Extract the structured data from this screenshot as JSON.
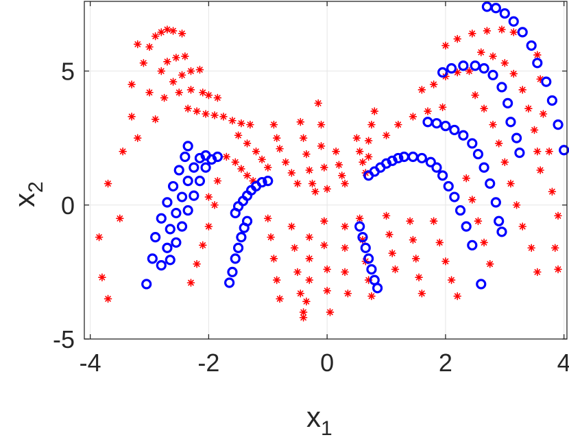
{
  "chart_data": {
    "type": "scatter",
    "xlabel": "x",
    "xlabel_sub": "1",
    "ylabel": "x",
    "ylabel_sub": "2",
    "xlim": [
      -4.1,
      4.05
    ],
    "ylim": [
      -5,
      7.6
    ],
    "xticks": [
      -4,
      -2,
      0,
      2,
      4
    ],
    "yticks": [
      -5,
      0,
      5
    ],
    "xtick_labels": [
      "-4",
      "-2",
      "0",
      "2",
      "4"
    ],
    "ytick_labels": [
      "-5",
      "0",
      "5"
    ],
    "grid": true,
    "colors": {
      "star": "#ff0000",
      "circle": "#0000ff",
      "axis": "#262626",
      "grid": "#e6e6e6"
    },
    "series": [
      {
        "marker": "star",
        "color": "#ff0000",
        "values": [
          [
            -3.8,
            -2.7
          ],
          [
            -3.7,
            -3.5
          ],
          [
            -3.85,
            -1.2
          ],
          [
            -3.7,
            0.8
          ],
          [
            -3.5,
            -0.5
          ],
          [
            -3.45,
            2.0
          ],
          [
            -3.3,
            3.3
          ],
          [
            -3.3,
            4.5
          ],
          [
            -3.2,
            6.0
          ],
          [
            -3.1,
            5.3
          ],
          [
            -3.0,
            5.9
          ],
          [
            -2.9,
            6.3
          ],
          [
            -2.8,
            6.45
          ],
          [
            -2.7,
            6.55
          ],
          [
            -2.6,
            6.5
          ],
          [
            -2.45,
            6.4
          ],
          [
            -3.0,
            4.2
          ],
          [
            -2.8,
            5.0
          ],
          [
            -2.7,
            5.35
          ],
          [
            -2.55,
            5.5
          ],
          [
            -2.4,
            5.55
          ],
          [
            -3.2,
            2.5
          ],
          [
            -2.9,
            3.2
          ],
          [
            -2.75,
            4.0
          ],
          [
            -2.6,
            4.6
          ],
          [
            -2.45,
            4.85
          ],
          [
            -2.3,
            5.0
          ],
          [
            -2.15,
            5.05
          ],
          [
            -2.5,
            4.2
          ],
          [
            -2.3,
            4.3
          ],
          [
            -2.1,
            4.2
          ],
          [
            -2.0,
            4.1
          ],
          [
            -1.85,
            4.0
          ],
          [
            -2.35,
            3.6
          ],
          [
            -2.2,
            3.5
          ],
          [
            -2.05,
            3.4
          ],
          [
            -1.9,
            3.35
          ],
          [
            -1.75,
            3.3
          ],
          [
            -1.6,
            3.15
          ],
          [
            -1.45,
            3.05
          ],
          [
            -1.3,
            3.0
          ],
          [
            -1.5,
            2.6
          ],
          [
            -1.35,
            2.3
          ],
          [
            -1.2,
            2.0
          ],
          [
            -1.1,
            1.7
          ],
          [
            -1.0,
            1.4
          ],
          [
            -1.55,
            1.6
          ],
          [
            -1.45,
            1.35
          ],
          [
            -1.35,
            1.1
          ],
          [
            -1.25,
            0.9
          ],
          [
            -0.9,
            3.0
          ],
          [
            -0.85,
            2.5
          ],
          [
            -0.8,
            2.1
          ],
          [
            -0.7,
            1.6
          ],
          [
            -0.6,
            1.2
          ],
          [
            -0.5,
            0.8
          ],
          [
            -0.45,
            3.1
          ],
          [
            -0.4,
            2.5
          ],
          [
            -0.35,
            1.9
          ],
          [
            -0.3,
            1.3
          ],
          [
            -0.25,
            0.8
          ],
          [
            -0.2,
            0.5
          ],
          [
            -0.15,
            3.8
          ],
          [
            -0.1,
            3.0
          ],
          [
            -0.1,
            2.2
          ],
          [
            -0.05,
            1.4
          ],
          [
            0.0,
            0.6
          ],
          [
            0.15,
            2.0
          ],
          [
            0.2,
            1.5
          ],
          [
            0.25,
            1.1
          ],
          [
            0.3,
            0.8
          ],
          [
            0.5,
            2.5
          ],
          [
            0.55,
            2.0
          ],
          [
            0.6,
            1.6
          ],
          [
            0.65,
            1.2
          ],
          [
            0.8,
            3.5
          ],
          [
            0.75,
            3.0
          ],
          [
            0.7,
            2.4
          ],
          [
            0.7,
            1.8
          ],
          [
            -1.0,
            -0.5
          ],
          [
            -0.95,
            -1.2
          ],
          [
            -0.9,
            -2.0
          ],
          [
            -0.85,
            -2.8
          ],
          [
            -0.8,
            -3.5
          ],
          [
            -0.6,
            -0.8
          ],
          [
            -0.55,
            -1.6
          ],
          [
            -0.5,
            -2.5
          ],
          [
            -0.45,
            -3.3
          ],
          [
            -0.4,
            -4.0
          ],
          [
            -0.3,
            -1.2
          ],
          [
            -0.3,
            -2.0
          ],
          [
            -0.3,
            -2.8
          ],
          [
            -0.35,
            -3.6
          ],
          [
            -0.4,
            -4.2
          ],
          [
            -0.05,
            -0.6
          ],
          [
            -0.05,
            -1.5
          ],
          [
            0.0,
            -2.4
          ],
          [
            0.0,
            -3.2
          ],
          [
            0.05,
            -4.0
          ],
          [
            0.3,
            -0.8
          ],
          [
            0.3,
            -1.6
          ],
          [
            0.3,
            -2.5
          ],
          [
            0.35,
            -3.3
          ],
          [
            0.55,
            -0.5
          ],
          [
            0.6,
            -1.3
          ],
          [
            0.65,
            -2.1
          ],
          [
            0.7,
            -2.8
          ],
          [
            0.75,
            -3.4
          ],
          [
            1.0,
            -0.4
          ],
          [
            1.05,
            -1.1
          ],
          [
            1.1,
            -1.8
          ],
          [
            1.15,
            -2.4
          ],
          [
            1.4,
            -0.6
          ],
          [
            1.45,
            -1.3
          ],
          [
            1.5,
            -2.0
          ],
          [
            1.55,
            -2.7
          ],
          [
            1.6,
            -3.3
          ],
          [
            1.8,
            -0.6
          ],
          [
            1.9,
            -1.4
          ],
          [
            2.0,
            -2.1
          ],
          [
            2.1,
            -2.8
          ],
          [
            2.2,
            -3.4
          ],
          [
            -1.9,
            0.0
          ],
          [
            -2.0,
            -0.8
          ],
          [
            -2.1,
            -1.5
          ],
          [
            -2.2,
            -2.2
          ],
          [
            -2.3,
            -2.9
          ],
          [
            -1.7,
            1.8
          ],
          [
            -1.85,
            0.9
          ],
          [
            -2.0,
            0.3
          ],
          [
            1.0,
            2.6
          ],
          [
            1.2,
            3.0
          ],
          [
            1.45,
            3.3
          ],
          [
            1.7,
            3.5
          ],
          [
            1.95,
            3.65
          ],
          [
            1.6,
            4.3
          ],
          [
            1.8,
            4.5
          ],
          [
            2.0,
            4.8
          ],
          [
            2.2,
            4.95
          ],
          [
            2.4,
            5.0
          ],
          [
            2.0,
            5.95
          ],
          [
            2.2,
            6.2
          ],
          [
            2.45,
            6.4
          ],
          [
            2.7,
            6.5
          ],
          [
            2.95,
            6.55
          ],
          [
            3.15,
            6.45
          ],
          [
            2.6,
            5.7
          ],
          [
            2.8,
            5.55
          ],
          [
            3.0,
            5.3
          ],
          [
            3.15,
            4.9
          ],
          [
            3.3,
            4.3
          ],
          [
            3.4,
            3.6
          ],
          [
            3.5,
            2.8
          ],
          [
            3.55,
            2.0
          ],
          [
            3.6,
            1.3
          ],
          [
            2.5,
            4.1
          ],
          [
            2.65,
            3.6
          ],
          [
            2.8,
            3.0
          ],
          [
            2.9,
            2.3
          ],
          [
            3.0,
            1.6
          ],
          [
            3.1,
            0.8
          ],
          [
            3.2,
            0.0
          ],
          [
            3.3,
            -0.8
          ],
          [
            3.45,
            -1.6
          ],
          [
            3.55,
            -2.5
          ],
          [
            2.35,
            1.0
          ],
          [
            2.45,
            0.2
          ],
          [
            2.55,
            -0.6
          ],
          [
            2.65,
            -1.4
          ],
          [
            2.75,
            -2.2
          ],
          [
            3.8,
            0.5
          ],
          [
            3.9,
            -0.4
          ],
          [
            3.85,
            -1.6
          ],
          [
            3.9,
            -2.4
          ],
          [
            3.75,
            2.0
          ],
          [
            3.65,
            3.4
          ],
          [
            3.6,
            4.7
          ],
          [
            3.55,
            5.6
          ]
        ]
      },
      {
        "marker": "circle",
        "color": "#0000ff",
        "values": [
          [
            -3.05,
            -2.95
          ],
          [
            -2.95,
            -2.0
          ],
          [
            -2.9,
            -1.2
          ],
          [
            -2.8,
            -0.5
          ],
          [
            -2.7,
            0.1
          ],
          [
            -2.6,
            0.7
          ],
          [
            -2.5,
            1.3
          ],
          [
            -2.4,
            1.8
          ],
          [
            -2.35,
            2.2
          ],
          [
            -2.8,
            -2.25
          ],
          [
            -2.7,
            -1.6
          ],
          [
            -2.65,
            -0.9
          ],
          [
            -2.55,
            -0.3
          ],
          [
            -2.45,
            0.3
          ],
          [
            -2.35,
            0.9
          ],
          [
            -2.25,
            1.4
          ],
          [
            -2.15,
            1.75
          ],
          [
            -2.05,
            1.85
          ],
          [
            -2.65,
            -2.05
          ],
          [
            -2.55,
            -1.4
          ],
          [
            -2.45,
            -0.8
          ],
          [
            -2.35,
            -0.2
          ],
          [
            -2.25,
            0.35
          ],
          [
            -2.15,
            0.9
          ],
          [
            -2.05,
            1.4
          ],
          [
            -1.95,
            1.7
          ],
          [
            -1.85,
            1.8
          ],
          [
            -1.65,
            -2.9
          ],
          [
            -1.6,
            -2.5
          ],
          [
            -1.55,
            -2.0
          ],
          [
            -1.5,
            -1.6
          ],
          [
            -1.45,
            -1.2
          ],
          [
            -1.4,
            -0.85
          ],
          [
            -1.35,
            -0.6
          ],
          [
            -1.55,
            -0.3
          ],
          [
            -1.5,
            -0.05
          ],
          [
            -1.42,
            0.15
          ],
          [
            -1.35,
            0.35
          ],
          [
            -1.28,
            0.55
          ],
          [
            -1.2,
            0.7
          ],
          [
            -1.1,
            0.85
          ],
          [
            -1.0,
            0.9
          ],
          [
            0.55,
            -0.8
          ],
          [
            0.6,
            -1.2
          ],
          [
            0.65,
            -1.6
          ],
          [
            0.7,
            -2.0
          ],
          [
            0.75,
            -2.4
          ],
          [
            0.8,
            -2.8
          ],
          [
            0.85,
            -3.1
          ],
          [
            0.7,
            1.1
          ],
          [
            0.8,
            1.25
          ],
          [
            0.9,
            1.4
          ],
          [
            1.0,
            1.55
          ],
          [
            1.1,
            1.65
          ],
          [
            1.2,
            1.75
          ],
          [
            1.3,
            1.8
          ],
          [
            1.45,
            1.8
          ],
          [
            1.6,
            1.75
          ],
          [
            1.75,
            1.6
          ],
          [
            1.85,
            1.4
          ],
          [
            1.95,
            1.1
          ],
          [
            2.05,
            0.7
          ],
          [
            2.15,
            0.3
          ],
          [
            2.25,
            -0.2
          ],
          [
            2.35,
            -0.8
          ],
          [
            2.45,
            -1.5
          ],
          [
            2.6,
            -2.95
          ],
          [
            1.7,
            3.1
          ],
          [
            1.85,
            3.05
          ],
          [
            2.0,
            2.95
          ],
          [
            2.15,
            2.8
          ],
          [
            2.3,
            2.6
          ],
          [
            2.45,
            2.3
          ],
          [
            2.55,
            1.9
          ],
          [
            2.65,
            1.4
          ],
          [
            2.75,
            0.8
          ],
          [
            2.85,
            0.1
          ],
          [
            2.9,
            -0.6
          ],
          [
            2.95,
            -1.0
          ],
          [
            1.95,
            4.95
          ],
          [
            2.1,
            5.1
          ],
          [
            2.3,
            5.2
          ],
          [
            2.5,
            5.2
          ],
          [
            2.65,
            5.1
          ],
          [
            2.8,
            4.85
          ],
          [
            2.95,
            4.4
          ],
          [
            3.05,
            3.8
          ],
          [
            3.1,
            3.1
          ],
          [
            3.2,
            2.5
          ],
          [
            3.25,
            1.95
          ],
          [
            2.7,
            7.4
          ],
          [
            2.85,
            7.35
          ],
          [
            3.0,
            7.15
          ],
          [
            3.15,
            6.85
          ],
          [
            3.3,
            6.45
          ],
          [
            3.45,
            5.95
          ],
          [
            3.55,
            5.3
          ],
          [
            3.7,
            4.6
          ],
          [
            3.8,
            3.9
          ],
          [
            3.9,
            3.0
          ],
          [
            4.0,
            2.05
          ]
        ]
      }
    ]
  }
}
